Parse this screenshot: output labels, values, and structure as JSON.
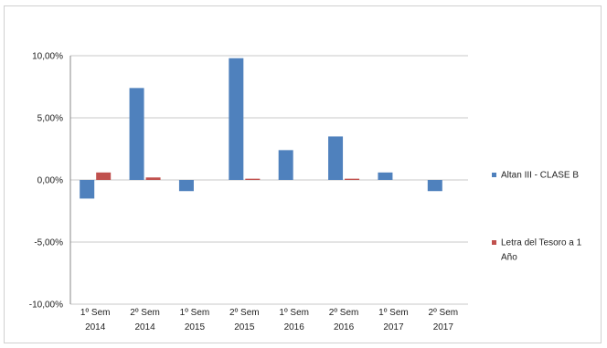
{
  "chart_data": {
    "type": "bar",
    "categories": [
      [
        "1º Sem",
        "2014"
      ],
      [
        "2º Sem",
        "2014"
      ],
      [
        "1º Sem",
        "2015"
      ],
      [
        "2º Sem",
        "2015"
      ],
      [
        "1º Sem",
        "2016"
      ],
      [
        "2º Sem",
        "2016"
      ],
      [
        "1º Sem",
        "2017"
      ],
      [
        "2º Sem",
        "2017"
      ]
    ],
    "series": [
      {
        "name": "Altan III - CLASE B",
        "color": "#4f81bd",
        "values": [
          -1.5,
          7.4,
          -0.9,
          9.8,
          2.4,
          3.5,
          0.6,
          -0.9
        ]
      },
      {
        "name": "Letra del Tesoro a 1 Año",
        "color": "#c0504d",
        "values": [
          0.6,
          0.2,
          0.0,
          0.1,
          0.0,
          0.1,
          0.0,
          0.0
        ]
      }
    ],
    "ylim": [
      -10,
      10
    ],
    "yticks": [
      10,
      5,
      0,
      -5,
      -10
    ],
    "ytick_labels": [
      "10,00%",
      "5,00%",
      "0,00%",
      "-5,00%",
      "-10,00%"
    ],
    "grid": true,
    "legend_position": "right",
    "legend_lines": [
      [
        "Altan III - CLASE B"
      ],
      [
        "Letra del Tesoro a 1",
        "Año"
      ]
    ]
  }
}
